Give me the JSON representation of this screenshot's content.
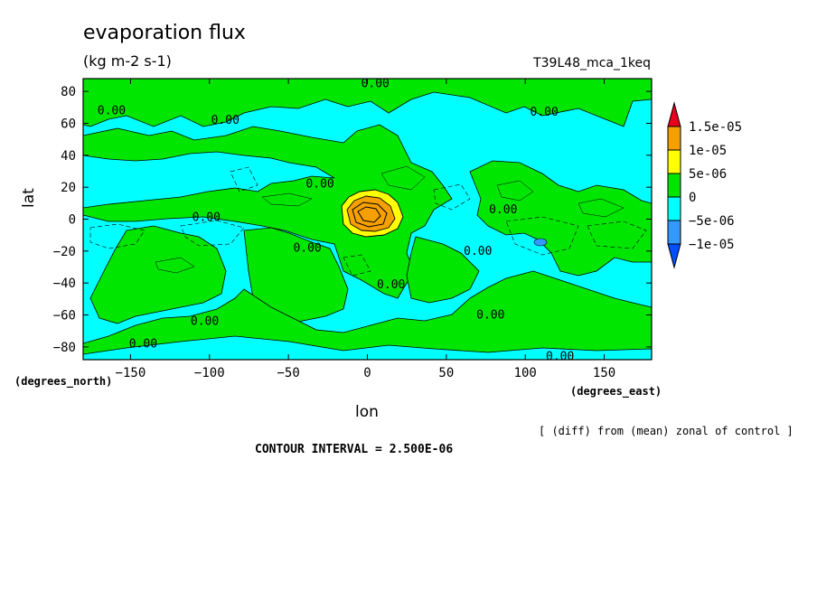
{
  "chart_data": {
    "type": "heatmap",
    "title": "evaporation flux",
    "units": "(kg m-2 s-1)",
    "run_label": "T39L48_mca_1keq",
    "xlabel": "lon",
    "ylabel": "lat",
    "x_unit_label": "(degrees_east)",
    "y_unit_label": "(degrees_north)",
    "xlim": [
      -180,
      180
    ],
    "ylim": [
      -88,
      88
    ],
    "x_ticks": [
      -150,
      -100,
      -50,
      0,
      50,
      100,
      150
    ],
    "y_ticks": [
      80,
      60,
      40,
      20,
      0,
      -20,
      -40,
      -60,
      -80
    ],
    "x_tick_labels": [
      "−150",
      "−100",
      "−50",
      "0",
      "50",
      "100",
      "150"
    ],
    "y_tick_labels": [
      "80",
      "60",
      "40",
      "20",
      "0",
      "−20",
      "−40",
      "−60",
      "−80"
    ],
    "colorbar": {
      "labels": [
        "1.5e-05",
        "1e-05",
        "5e-06",
        "0",
        "−5e-06",
        "−1e-05"
      ],
      "colors": [
        "#e8001c",
        "#f5a000",
        "#ffff00",
        "#00e600",
        "#00ffff",
        "#3399ff",
        "#0050ff"
      ]
    },
    "contour_labels": [
      {
        "text": "0.00",
        "lon": 5,
        "lat": 85
      },
      {
        "text": "0.00",
        "lon": -162,
        "lat": 68
      },
      {
        "text": "0.00",
        "lon": -90,
        "lat": 62
      },
      {
        "text": "0.00",
        "lon": 112,
        "lat": 67
      },
      {
        "text": "0.00",
        "lon": -30,
        "lat": 22
      },
      {
        "text": "0.00",
        "lon": -102,
        "lat": 1
      },
      {
        "text": "0.00",
        "lon": 86,
        "lat": 6
      },
      {
        "text": "0.00",
        "lon": -38,
        "lat": -18
      },
      {
        "text": "0.00",
        "lon": 70,
        "lat": -20
      },
      {
        "text": "0.00",
        "lon": 15,
        "lat": -41
      },
      {
        "text": "0.00",
        "lon": -103,
        "lat": -64
      },
      {
        "text": "0.00",
        "lon": 78,
        "lat": -60
      },
      {
        "text": "0.00",
        "lon": -142,
        "lat": -78
      },
      {
        "text": "0.00",
        "lon": 122,
        "lat": -86
      }
    ],
    "note": "[ (diff) from (mean) zonal of control ]",
    "contour_interval": "CONTOUR INTERVAL = 2.500E-06"
  }
}
